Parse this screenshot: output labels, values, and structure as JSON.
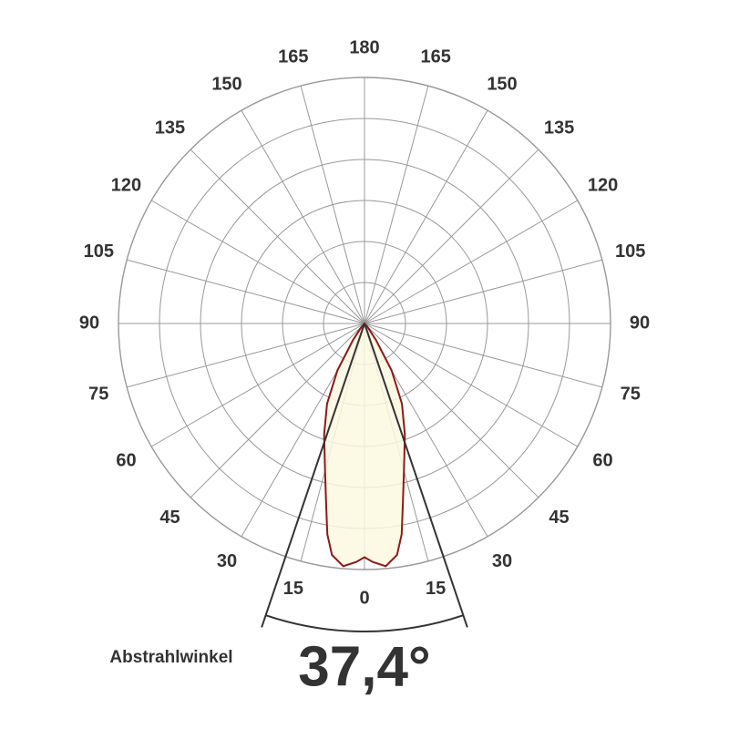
{
  "chart_data": {
    "type": "polar",
    "angle_ticks": [
      0,
      15,
      30,
      45,
      60,
      75,
      90,
      105,
      120,
      135,
      150,
      165,
      180
    ],
    "rlim": [
      0,
      100
    ],
    "angles": [
      -45,
      -40,
      -35,
      -30,
      -25,
      -20,
      -15,
      -12,
      -10,
      -8,
      -5,
      -2,
      0,
      2,
      5,
      8,
      10,
      12,
      15,
      20,
      25,
      30,
      35,
      40,
      45
    ],
    "values": [
      0,
      2,
      8,
      22,
      36,
      48,
      62,
      75,
      87,
      95,
      99,
      97,
      95,
      97,
      99,
      95,
      87,
      75,
      62,
      48,
      36,
      22,
      8,
      2,
      0
    ],
    "fill": "#fbf8e0",
    "color": "#8b1a1a",
    "beam_angle": 37.4,
    "beam_angle_label": "37,4°",
    "beam_label": "Abstrahlwinkel"
  }
}
